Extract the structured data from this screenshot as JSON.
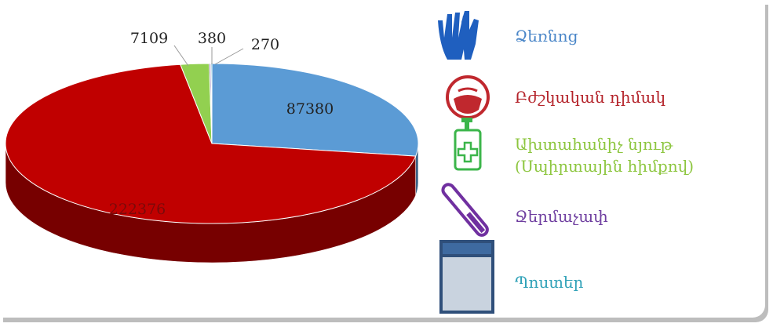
{
  "chart_data": {
    "type": "pie",
    "categories": [
      "Ձեռնոց",
      "Բժշկական դիմակ",
      "Ախտահանիչ նյութ\n(Սպիրտային հիմքով)",
      "Ջերմաչափ",
      "Պոստեր"
    ],
    "values": [
      87380,
      222376,
      7109,
      380,
      270
    ],
    "colors": [
      "#5b9bd5",
      "#c00000",
      "#92d050",
      "#8064a2",
      "#4bacc6"
    ],
    "legend_colors": [
      "#4a86c8",
      "#b4232a",
      "#8dc63f",
      "#6f3fa0",
      "#31a2b8"
    ]
  }
}
